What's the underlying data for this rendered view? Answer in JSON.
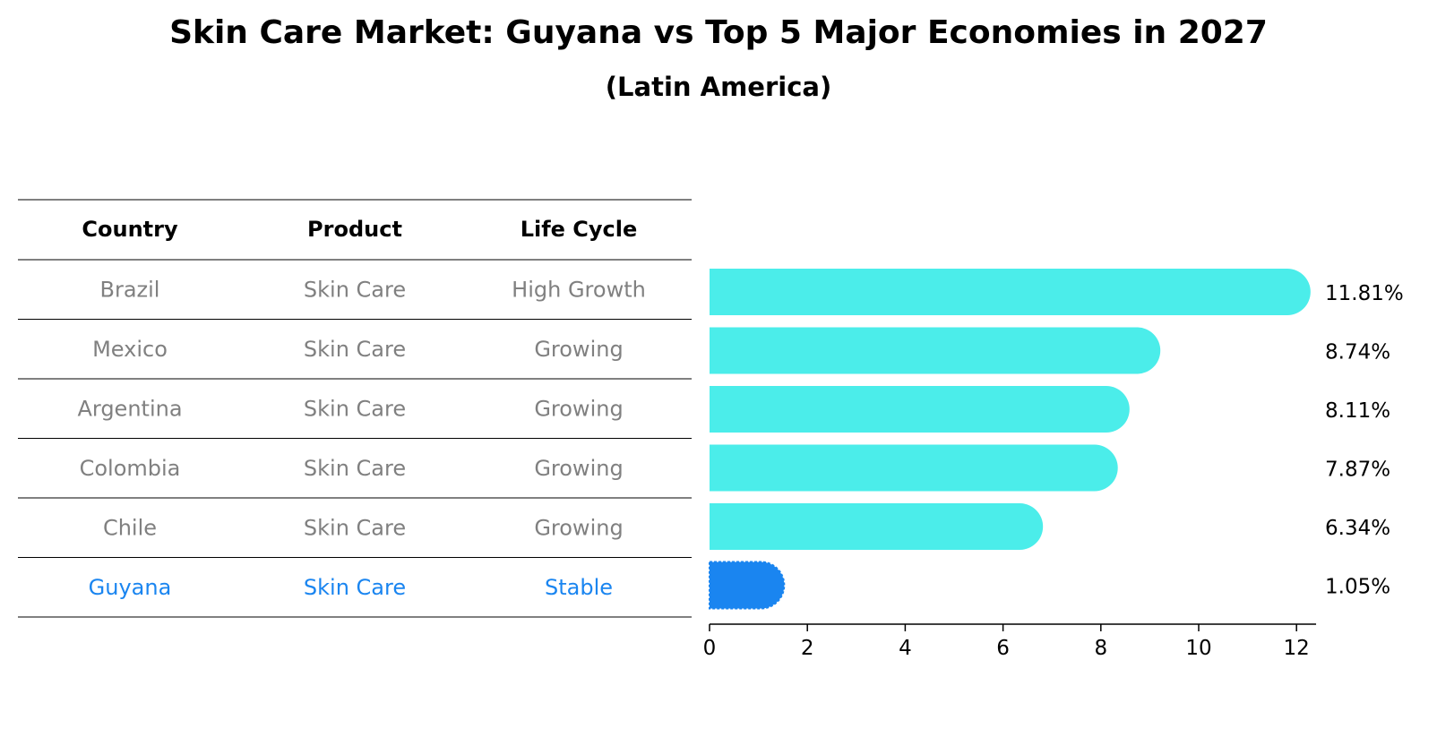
{
  "title": "Skin Care Market: Guyana vs Top 5 Major Economies in 2027",
  "subtitle": "(Latin America)",
  "table": {
    "headers": [
      "Country",
      "Product",
      "Life Cycle"
    ],
    "rows": [
      {
        "country": "Brazil",
        "product": "Skin Care",
        "life_cycle": "High Growth",
        "highlight": false
      },
      {
        "country": "Mexico",
        "product": "Skin Care",
        "life_cycle": "Growing",
        "highlight": false
      },
      {
        "country": "Argentina",
        "product": "Skin Care",
        "life_cycle": "Growing",
        "highlight": false
      },
      {
        "country": "Colombia",
        "product": "Skin Care",
        "life_cycle": "Growing",
        "highlight": false
      },
      {
        "country": "Chile",
        "product": "Skin Care",
        "life_cycle": "Growing",
        "highlight": false
      },
      {
        "country": "Guyana",
        "product": "Skin Care",
        "life_cycle": "Stable",
        "highlight": true
      }
    ]
  },
  "chart_data": {
    "type": "bar",
    "orientation": "horizontal",
    "categories": [
      "Brazil",
      "Mexico",
      "Argentina",
      "Colombia",
      "Chile",
      "Guyana"
    ],
    "values": [
      11.81,
      8.74,
      8.11,
      7.87,
      6.34,
      1.05
    ],
    "value_labels": [
      "11.81%",
      "8.74%",
      "8.11%",
      "7.87%",
      "6.34%",
      "1.05%"
    ],
    "xlim": [
      0,
      12.4
    ],
    "xticks": [
      0,
      2,
      4,
      6,
      8,
      10,
      12
    ],
    "grid": false,
    "colors": {
      "default_bar": "#4bedea",
      "highlight_bar": "#1a85f0",
      "row_text": "#808080",
      "highlight_text": "#1a85f0",
      "header_text": "#000000"
    }
  }
}
